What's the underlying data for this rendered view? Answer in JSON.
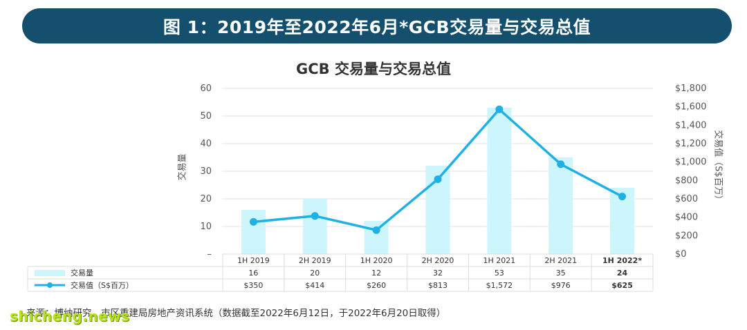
{
  "banner": {
    "title": "图 1：2019年至2022年6月*GCB交易量与交易总值"
  },
  "chart_data": {
    "type": "bar",
    "title": "GCB 交易量与交易总值",
    "categories": [
      "1H 2019",
      "2H 2019",
      "1H 2020",
      "2H 2020",
      "1H 2021",
      "2H 2021",
      "1H 2022*"
    ],
    "series": [
      {
        "name": "交易量",
        "type": "bar",
        "axis": "left",
        "color": "#ccf6fb",
        "values": [
          16,
          20,
          12,
          32,
          53,
          35,
          24
        ],
        "labels": [
          "16",
          "20",
          "12",
          "32",
          "53",
          "35",
          "24"
        ]
      },
      {
        "name": "交易值（S$百万）",
        "type": "line",
        "axis": "right",
        "color": "#1fb1e6",
        "values": [
          350,
          414,
          260,
          813,
          1572,
          976,
          625
        ],
        "labels": [
          "$350",
          "$414",
          "$260",
          "$813",
          "$1,572",
          "$976",
          "$625"
        ]
      }
    ],
    "ylabel": "交易量",
    "y2label": "交易值（S$百万）",
    "ylim": [
      0,
      60
    ],
    "y2lim": [
      0,
      1800
    ],
    "yticks": [
      "–",
      "10",
      "20",
      "30",
      "40",
      "50",
      "60"
    ],
    "y2ticks": [
      "$0",
      "$200",
      "$400",
      "$600",
      "$800",
      "$1,000",
      "$1,200",
      "$1,400",
      "$1,600",
      "$1,800"
    ],
    "bold_category": "1H 2022*",
    "grid": true,
    "legend": "data-table"
  },
  "footer": {
    "source": "来源：博纳研究，市区重建局房地产资讯系统（数据截至2022年6月12日，于2022年6月20日取得）",
    "watermark": "shicheng.news"
  }
}
